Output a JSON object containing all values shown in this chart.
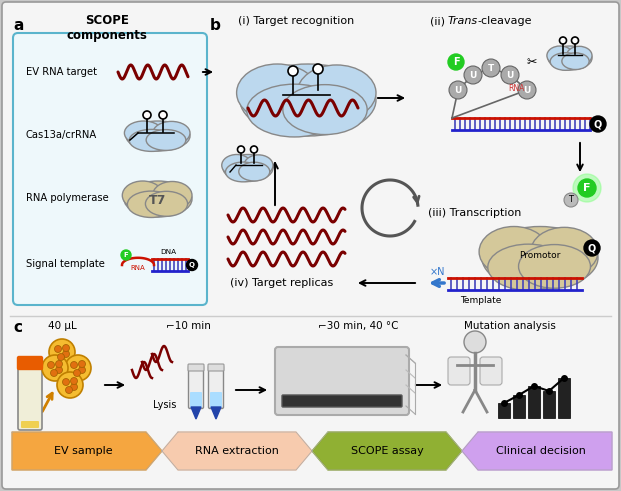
{
  "bg_color": "#c8c8c8",
  "main_bg": "#f5f5f5",
  "panel_a_box_color": "#5ab4cc",
  "panel_a_box_fill": "#eef8fb",
  "worm_color": "#7a0000",
  "dna_top": "#cc1100",
  "dna_bot": "#2222cc",
  "dna_vert": "#4444bb",
  "green_bright": "#22cc22",
  "green_glow": "#88ff88",
  "gray_bubble": "#aaaaaa",
  "tan_cloud": "#d4c89a",
  "blue_cloud": "#bcd8ee",
  "blue_arrow": "#3377cc",
  "black": "#111111",
  "white": "#ffffff",
  "orange_cap": "#e85c00",
  "orange_body": "#e0dcc0",
  "ev_yellow": "#f5bc30",
  "ev_orange": "#e07010",
  "bottom_arrows": [
    {
      "color": "#f5a030",
      "label": "EV sample"
    },
    {
      "color": "#f8c8a8",
      "label": "RNA extraction"
    },
    {
      "color": "#88aa22",
      "label": "SCOPE assay"
    },
    {
      "color": "#cc99ee",
      "label": "Clinical decision"
    }
  ]
}
